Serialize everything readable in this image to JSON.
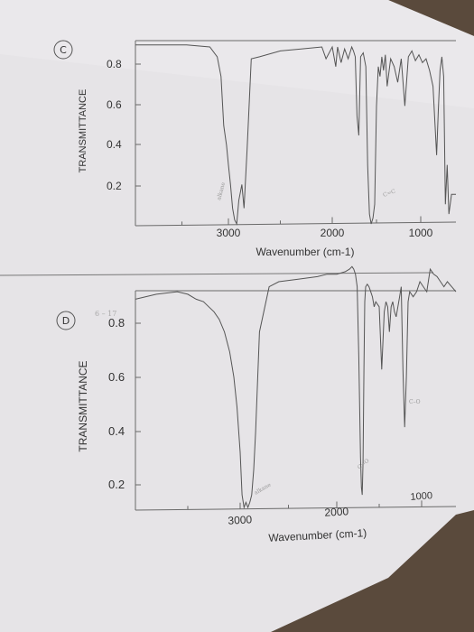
{
  "chart_data": [
    {
      "type": "line",
      "panel_label": "C",
      "title": "",
      "xlabel": "Wavenumber (cm-1)",
      "ylabel": "TRANSMITTANCE",
      "x_ticks": [
        "3000",
        "2000",
        "1000"
      ],
      "y_ticks": [
        "0.8",
        "0.6",
        "0.4",
        "0.2"
      ],
      "xlim": [
        4000,
        600
      ],
      "ylim": [
        0.0,
        0.9
      ],
      "x_reversed": true,
      "grid": false,
      "series": [
        {
          "name": "",
          "x": [
            4000,
            3450,
            3200,
            3120,
            3080,
            3050,
            3020,
            3000,
            2980,
            2960,
            2940,
            2920,
            2900,
            2870,
            2850,
            2820,
            2780,
            2700,
            2500,
            2300,
            2100,
            2060,
            2000,
            1960,
            1940,
            1900,
            1860,
            1820,
            1780,
            1760,
            1740,
            1720,
            1700,
            1680,
            1650,
            1620,
            1600,
            1580,
            1560,
            1540,
            1520,
            1500,
            1480,
            1460,
            1440,
            1420,
            1400,
            1380,
            1340,
            1300,
            1260,
            1220,
            1180,
            1140,
            1100,
            1060,
            1020,
            980,
            940,
            900,
            860,
            820,
            800,
            780,
            760,
            740,
            720,
            700,
            680,
            650,
            600
          ],
          "values": [
            0.91,
            0.91,
            0.9,
            0.85,
            0.75,
            0.5,
            0.4,
            0.3,
            0.2,
            0.08,
            0.02,
            0.0,
            0.12,
            0.2,
            0.08,
            0.38,
            0.84,
            0.85,
            0.88,
            0.89,
            0.9,
            0.84,
            0.9,
            0.8,
            0.9,
            0.82,
            0.89,
            0.84,
            0.9,
            0.88,
            0.85,
            0.55,
            0.45,
            0.85,
            0.87,
            0.8,
            0.3,
            0.05,
            0.0,
            0.03,
            0.1,
            0.6,
            0.8,
            0.75,
            0.85,
            0.78,
            0.86,
            0.7,
            0.84,
            0.8,
            0.72,
            0.84,
            0.6,
            0.85,
            0.88,
            0.83,
            0.86,
            0.82,
            0.84,
            0.78,
            0.7,
            0.35,
            0.58,
            0.78,
            0.85,
            0.75,
            0.1,
            0.3,
            0.05,
            0.15,
            0.15
          ]
        }
      ]
    },
    {
      "type": "line",
      "panel_label": "D",
      "title": "",
      "xlabel": "Wavenumber (cm-1)",
      "ylabel": "TRANSMITTANCE",
      "x_ticks": [
        "3000",
        "2000",
        "1000"
      ],
      "y_ticks": [
        "0.8",
        "0.6",
        "0.4",
        "0.2"
      ],
      "xlim": [
        4000,
        600
      ],
      "ylim": [
        0.0,
        0.9
      ],
      "x_reversed": true,
      "grid": false,
      "series": [
        {
          "name": "",
          "x": [
            4000,
            3800,
            3600,
            3500,
            3420,
            3350,
            3300,
            3250,
            3200,
            3150,
            3100,
            3060,
            3030,
            3000,
            2980,
            2960,
            2940,
            2920,
            2900,
            2880,
            2860,
            2840,
            2800,
            2700,
            2600,
            2400,
            2200,
            2100,
            2000,
            1900,
            1850,
            1820,
            1800,
            1780,
            1760,
            1740,
            1720,
            1710,
            1700,
            1690,
            1680,
            1670,
            1660,
            1640,
            1620,
            1600,
            1580,
            1560,
            1540,
            1500,
            1470,
            1440,
            1420,
            1400,
            1380,
            1360,
            1340,
            1320,
            1300,
            1280,
            1260,
            1240,
            1220,
            1200,
            1180,
            1160,
            1140,
            1100,
            1060,
            1020,
            980,
            940,
            900,
            860,
            820,
            780,
            740,
            700,
            650,
            600
          ],
          "values": [
            0.83,
            0.85,
            0.86,
            0.85,
            0.83,
            0.82,
            0.8,
            0.78,
            0.75,
            0.7,
            0.62,
            0.52,
            0.4,
            0.22,
            0.05,
            0.0,
            0.02,
            0.0,
            0.02,
            0.05,
            0.15,
            0.3,
            0.7,
            0.88,
            0.9,
            0.91,
            0.92,
            0.93,
            0.93,
            0.94,
            0.95,
            0.96,
            0.95,
            0.93,
            0.88,
            0.6,
            0.2,
            0.08,
            0.05,
            0.18,
            0.55,
            0.82,
            0.88,
            0.89,
            0.88,
            0.86,
            0.84,
            0.8,
            0.82,
            0.8,
            0.55,
            0.78,
            0.82,
            0.8,
            0.7,
            0.8,
            0.82,
            0.78,
            0.76,
            0.8,
            0.84,
            0.88,
            0.55,
            0.32,
            0.52,
            0.82,
            0.86,
            0.84,
            0.86,
            0.9,
            0.88,
            0.86,
            0.95,
            0.93,
            0.92,
            0.9,
            0.88,
            0.9,
            0.88,
            0.86
          ]
        }
      ]
    }
  ],
  "annotations": {
    "c_peak1": "alkane",
    "c_peak2": "C=C",
    "d_peak1": "alkane",
    "d_peak2": "C=O",
    "d_peak3": "C–O",
    "d_margin_note": "6 – 17"
  },
  "colors": {
    "paper": "#e8e6e9",
    "line": "#555555",
    "frame": "#6a6a6a",
    "text": "#2e2e2e",
    "pencil": "#9a9a9a",
    "background": "#5a4a3c"
  }
}
